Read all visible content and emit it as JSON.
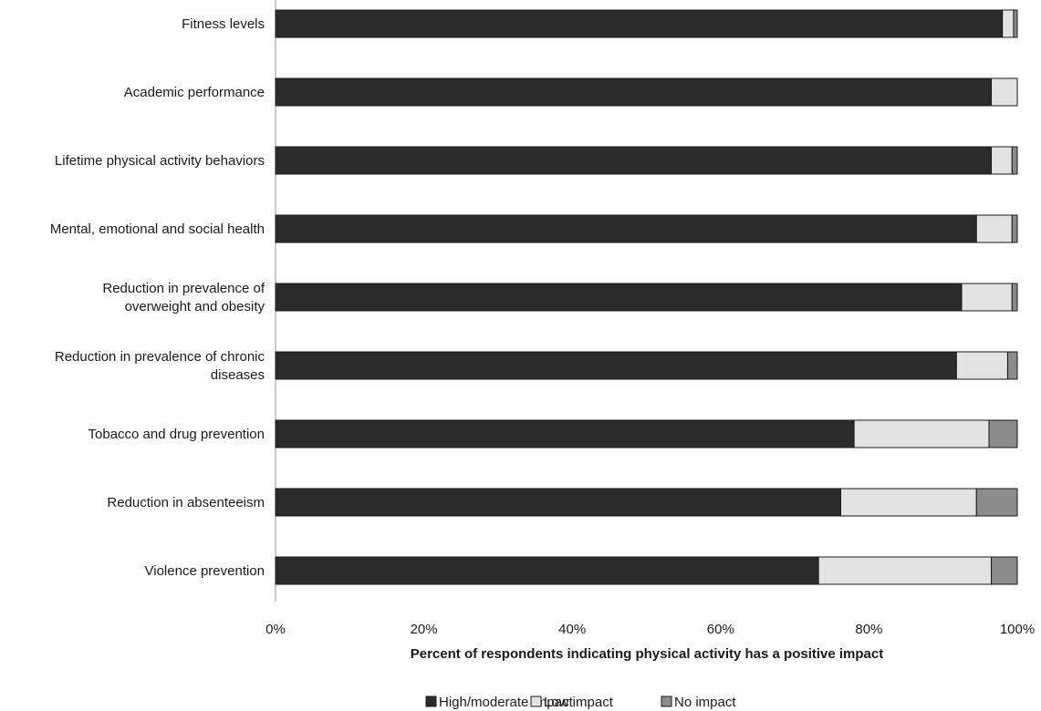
{
  "chart_data": {
    "type": "bar",
    "orientation": "horizontal",
    "stacked": true,
    "categories": [
      [
        "Fitness levels"
      ],
      [
        "Academic performance"
      ],
      [
        "Lifetime physical activity behaviors"
      ],
      [
        "Mental, emotional and social health"
      ],
      [
        "Reduction in prevalence of",
        "overweight and obesity"
      ],
      [
        "Reduction in prevalence of chronic",
        "diseases"
      ],
      [
        "Tobacco and drug prevention"
      ],
      [
        "Reduction in absenteeism"
      ],
      [
        "Violence prevention"
      ]
    ],
    "series": [
      {
        "name": "High/moderate impact",
        "color": "#2b2b2b",
        "values": [
          98.0,
          96.5,
          96.5,
          94.5,
          92.5,
          91.8,
          78.0,
          76.2,
          73.2
        ]
      },
      {
        "name": "Low impact",
        "color": "#e3e3e3",
        "values": [
          1.5,
          3.5,
          2.8,
          4.8,
          6.8,
          6.9,
          18.2,
          18.3,
          23.3
        ]
      },
      {
        "name": "No impact",
        "color": "#8c8c8c",
        "values": [
          0.5,
          0.0,
          0.7,
          0.7,
          0.7,
          1.3,
          3.8,
          5.5,
          3.5
        ]
      }
    ],
    "x_ticks": [
      "0%",
      "20%",
      "40%",
      "60%",
      "80%",
      "100%"
    ],
    "xlim": [
      0,
      100
    ],
    "xlabel": "Percent of respondents indicating physical activity has a positive impact",
    "ylabel": "",
    "title": "",
    "grid": false,
    "legend_position": "bottom"
  }
}
